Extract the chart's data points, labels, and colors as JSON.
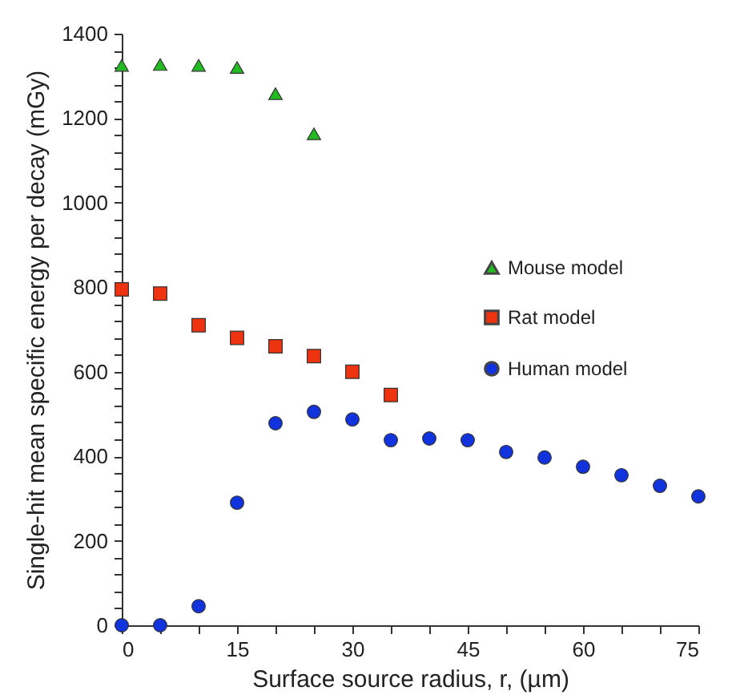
{
  "chart_data": {
    "type": "scatter",
    "xlabel": "Surface source radius, r, (µm)",
    "ylabel": "Single-hit mean specific energy per decay (mGy)",
    "xlim": [
      0,
      75
    ],
    "ylim": [
      0,
      1400
    ],
    "xticks": [
      0,
      {
        "value": 5,
        "label": null
      },
      {
        "value": 10,
        "label": null
      },
      15,
      {
        "value": 20,
        "label": null
      },
      {
        "value": 25,
        "label": null
      },
      30,
      {
        "value": 35,
        "label": null
      },
      {
        "value": 40,
        "label": null
      },
      45,
      {
        "value": 50,
        "label": null
      },
      {
        "value": 55,
        "label": null
      },
      60,
      {
        "value": 65,
        "label": null
      },
      {
        "value": 70,
        "label": null
      },
      75
    ],
    "yticks": [
      0,
      {
        "value": 40,
        "label": null
      },
      {
        "value": 80,
        "label": null
      },
      {
        "value": 120,
        "label": null
      },
      {
        "value": 160,
        "label": null
      },
      200,
      {
        "value": 240,
        "label": null
      },
      {
        "value": 280,
        "label": null
      },
      {
        "value": 320,
        "label": null
      },
      {
        "value": 360,
        "label": null
      },
      400,
      {
        "value": 440,
        "label": null
      },
      {
        "value": 480,
        "label": null
      },
      {
        "value": 520,
        "label": null
      },
      {
        "value": 560,
        "label": null
      },
      600,
      {
        "value": 640,
        "label": null
      },
      {
        "value": 680,
        "label": null
      },
      {
        "value": 720,
        "label": null
      },
      {
        "value": 760,
        "label": null
      },
      800,
      {
        "value": 840,
        "label": null
      },
      {
        "value": 880,
        "label": null
      },
      {
        "value": 920,
        "label": null
      },
      {
        "value": 960,
        "label": null
      },
      1000,
      {
        "value": 1040,
        "label": null
      },
      {
        "value": 1080,
        "label": null
      },
      {
        "value": 1120,
        "label": null
      },
      {
        "value": 1160,
        "label": null
      },
      1200,
      {
        "value": 1240,
        "label": null
      },
      {
        "value": 1280,
        "label": null
      },
      {
        "value": 1320,
        "label": null
      },
      {
        "value": 1360,
        "label": null
      },
      1400
    ],
    "grid": false,
    "legend": "right",
    "series": [
      {
        "name": "Mouse model",
        "color": "#22bb22",
        "marker": "triangle",
        "x": [
          0,
          5,
          10,
          15,
          20,
          25
        ],
        "values": [
          1325,
          1327,
          1325,
          1320,
          1258,
          1163
        ]
      },
      {
        "name": "Rat model",
        "color": "#ee3311",
        "marker": "square",
        "x": [
          0,
          5,
          10,
          15,
          20,
          25,
          30,
          35
        ],
        "values": [
          795,
          785,
          710,
          680,
          660,
          637,
          600,
          545
        ]
      },
      {
        "name": "Human model",
        "color": "#1133dd",
        "marker": "circle",
        "x": [
          0,
          5,
          10,
          15,
          20,
          25,
          30,
          35,
          40,
          45,
          50,
          55,
          60,
          65,
          70,
          75
        ],
        "values": [
          0,
          0,
          45,
          290,
          478,
          505,
          487,
          438,
          442,
          438,
          410,
          397,
          375,
          355,
          330,
          305
        ]
      }
    ]
  }
}
